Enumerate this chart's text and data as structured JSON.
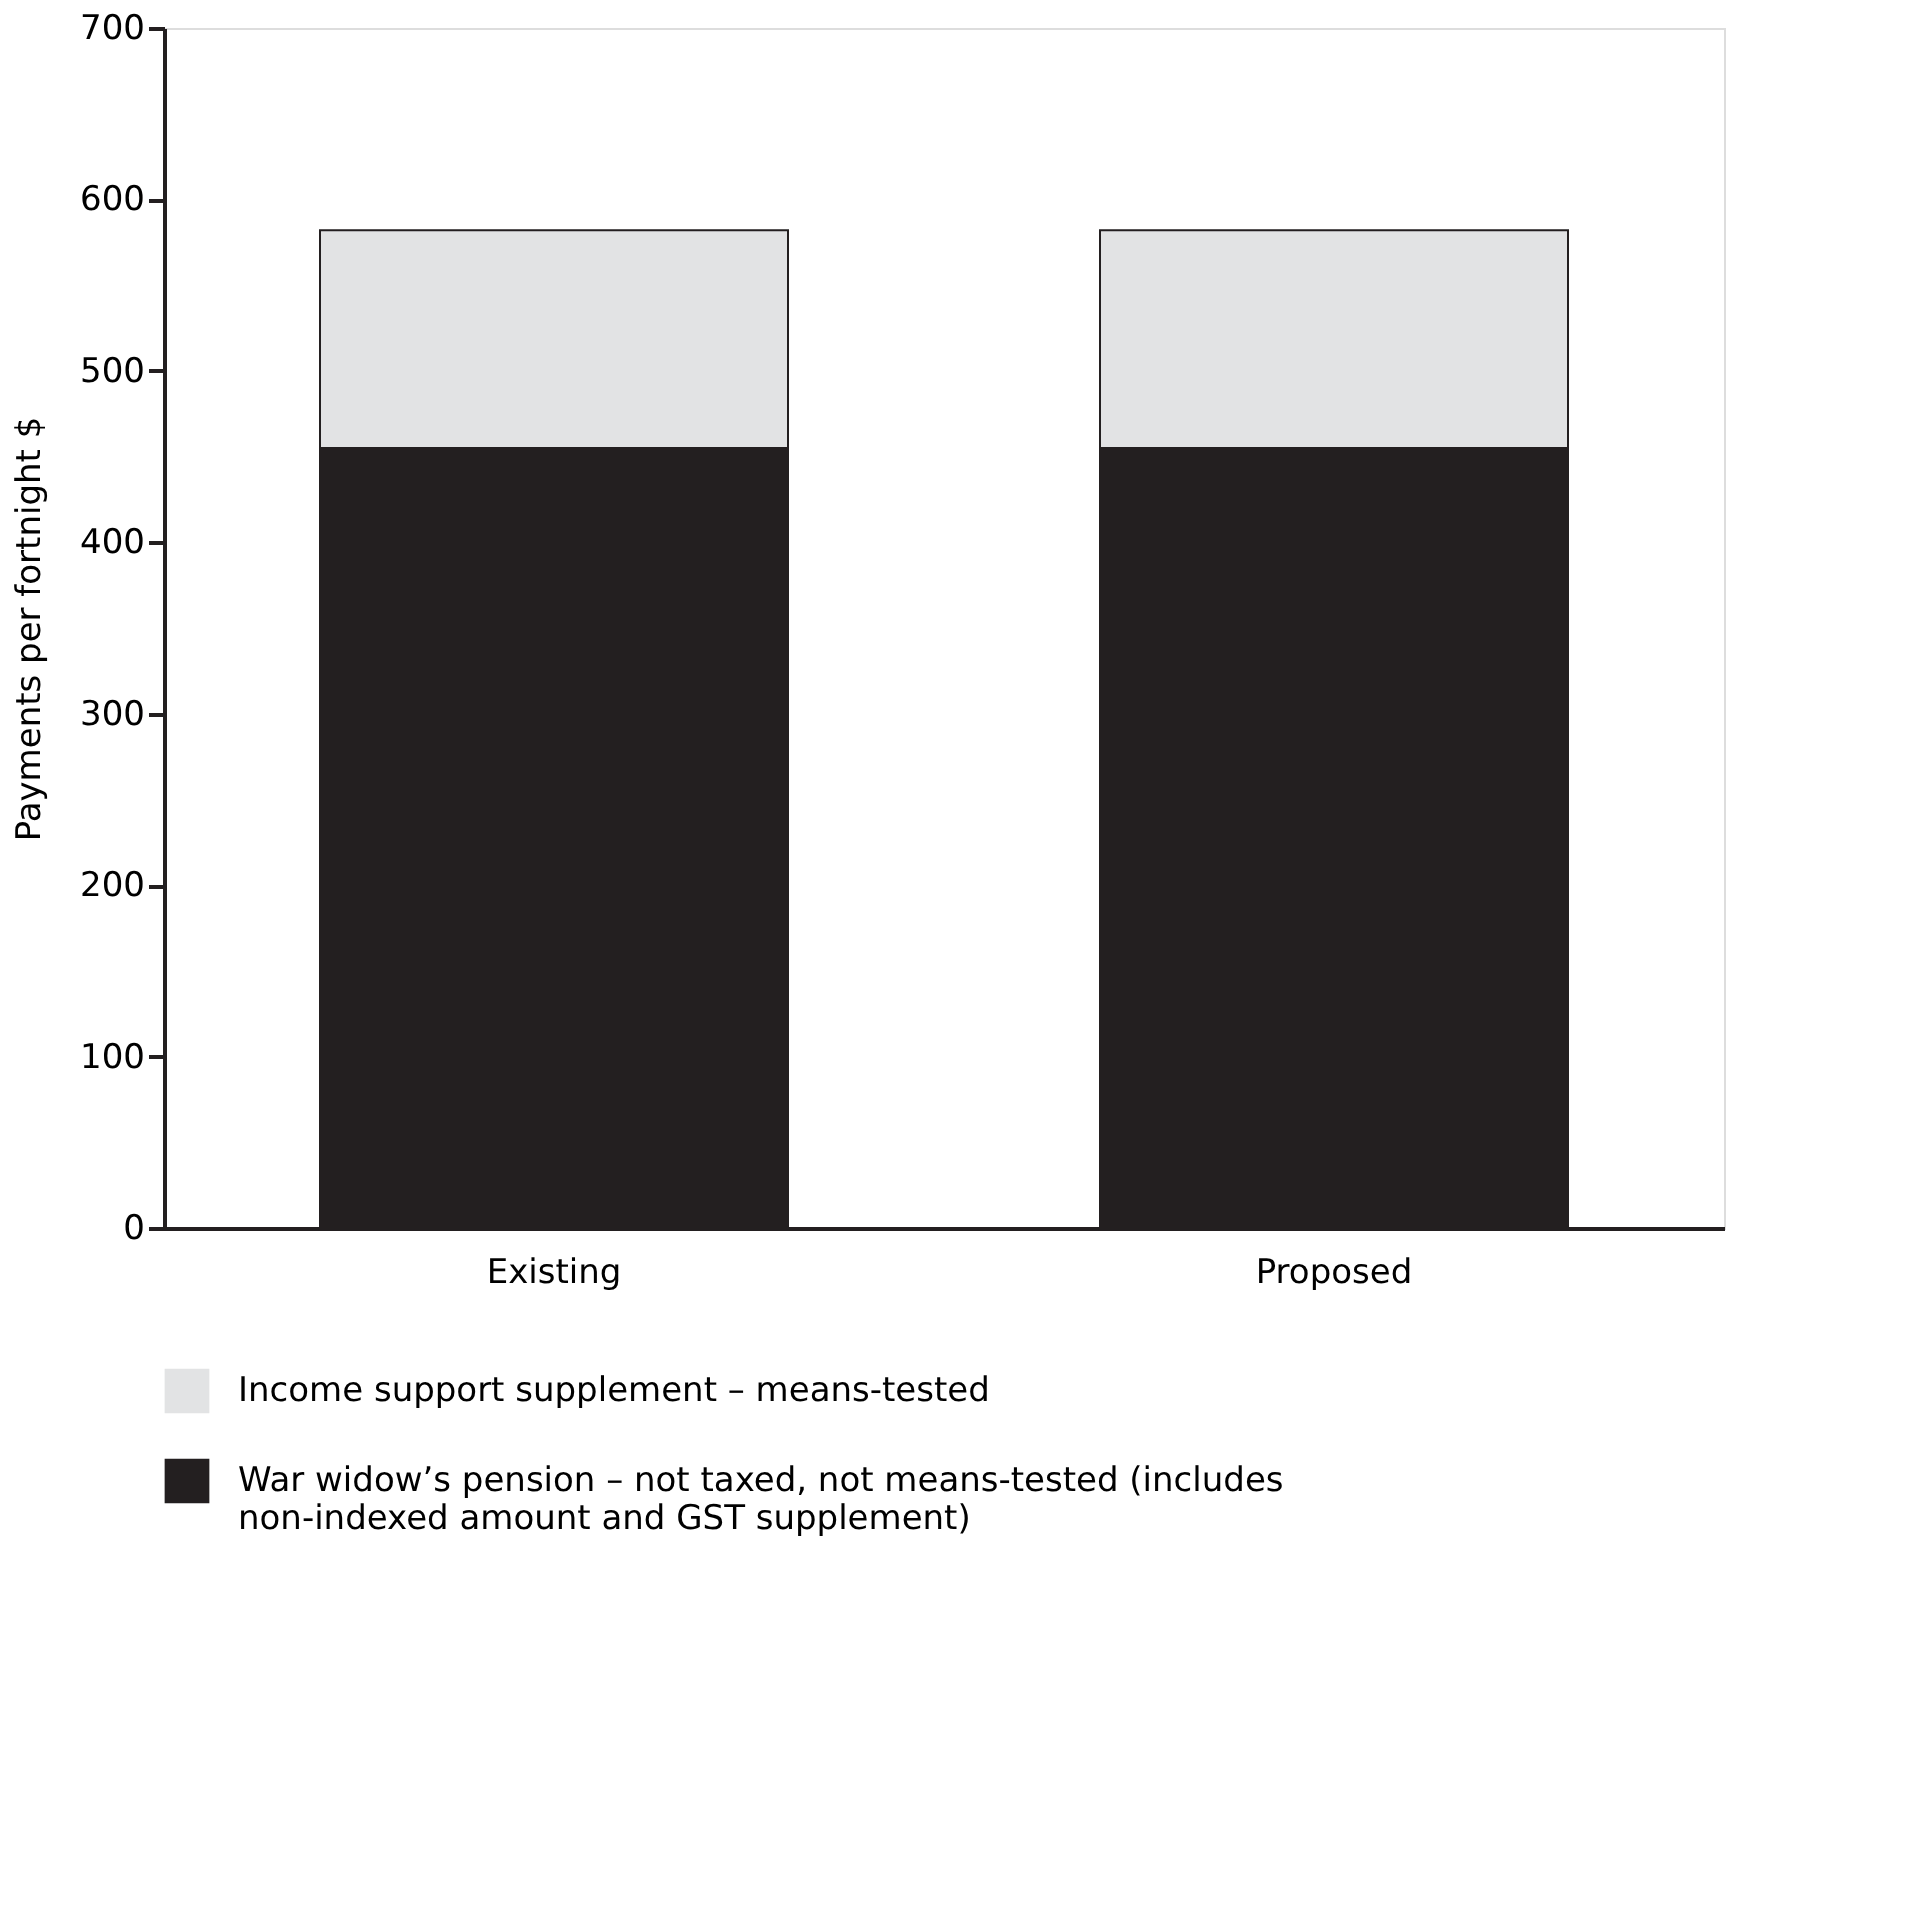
{
  "chart_data": {
    "type": "bar",
    "ylabel": "Payments per fortnight $",
    "categories": [
      "Existing",
      "Proposed"
    ],
    "stacked": true,
    "series": [
      {
        "name": "War widow’s pension – not taxed, not means-tested (includes non-indexed amount and GST supplement)",
        "color": "#231f20",
        "values": [
          455,
          455
        ]
      },
      {
        "name": "Income support supplement – means-tested",
        "color": "#e2e3e4",
        "values": [
          127,
          127
        ]
      }
    ],
    "ylim": [
      0,
      700
    ],
    "yticks": [
      0,
      100,
      200,
      300,
      400,
      500,
      600,
      700
    ],
    "grid": false,
    "legend": "bottom"
  }
}
